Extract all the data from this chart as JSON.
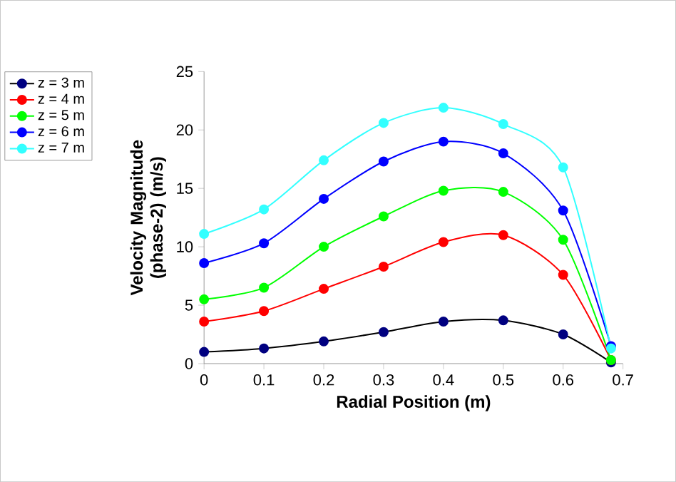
{
  "chart_data": {
    "type": "line",
    "xlabel": "Radial Position (m)",
    "ylabel": "Velocity Magnitude (phase-2) (m/s)",
    "x": [
      0,
      0.1,
      0.2,
      0.3,
      0.4,
      0.5,
      0.6,
      0.68
    ],
    "series": [
      {
        "name": "z = 3 m",
        "color": "#000080",
        "values": [
          1.0,
          1.3,
          1.9,
          2.7,
          3.6,
          3.7,
          2.5,
          0.1
        ]
      },
      {
        "name": "z = 4 m",
        "color": "#ff0000",
        "values": [
          3.6,
          4.5,
          6.4,
          8.3,
          10.4,
          11.0,
          7.6,
          0.3
        ]
      },
      {
        "name": "z = 5 m",
        "color": "#00ff00",
        "values": [
          5.5,
          6.5,
          10.0,
          12.6,
          14.8,
          14.7,
          10.6,
          0.3
        ]
      },
      {
        "name": "z = 6 m",
        "color": "#0000ff",
        "values": [
          8.6,
          10.3,
          14.1,
          17.3,
          19.0,
          18.0,
          13.1,
          1.5
        ]
      },
      {
        "name": "z = 7 m",
        "color": "#33ffff",
        "values": [
          11.1,
          13.2,
          17.4,
          20.6,
          21.9,
          20.5,
          16.8,
          1.3
        ]
      }
    ],
    "xlim": [
      0,
      0.7
    ],
    "ylim": [
      0,
      25
    ],
    "xticks": [
      0,
      0.1,
      0.2,
      0.3,
      0.4,
      0.5,
      0.6,
      0.7
    ],
    "yticks": [
      0,
      5,
      10,
      15,
      20,
      25
    ],
    "marker": "circle",
    "legend": "top left",
    "grid": false
  }
}
